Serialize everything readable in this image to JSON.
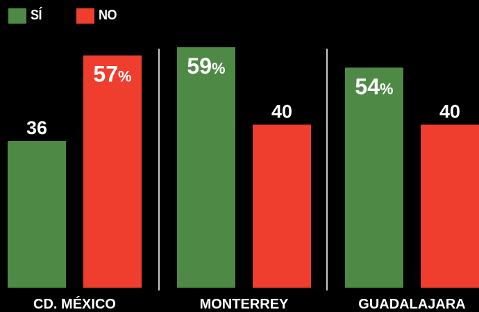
{
  "legend": {
    "si": {
      "label": "SÍ",
      "color": "#4e8a45"
    },
    "no": {
      "label": "NO",
      "color": "#ef3e2e"
    }
  },
  "chart_data": {
    "type": "bar",
    "categories": [
      "CD. MÉXICO",
      "MONTERREY",
      "GUADALAJARA"
    ],
    "series": [
      {
        "name": "SÍ",
        "values": [
          36,
          59,
          54
        ],
        "labels": [
          "36",
          "59%",
          "54%"
        ],
        "color": "#4e8a45"
      },
      {
        "name": "NO",
        "values": [
          57,
          40,
          40
        ],
        "labels": [
          "57%",
          "40",
          "40"
        ],
        "color": "#ef3e2e"
      }
    ],
    "ylim": [
      0,
      59
    ],
    "grid": false,
    "legend_position": "top-left",
    "separators": true
  }
}
